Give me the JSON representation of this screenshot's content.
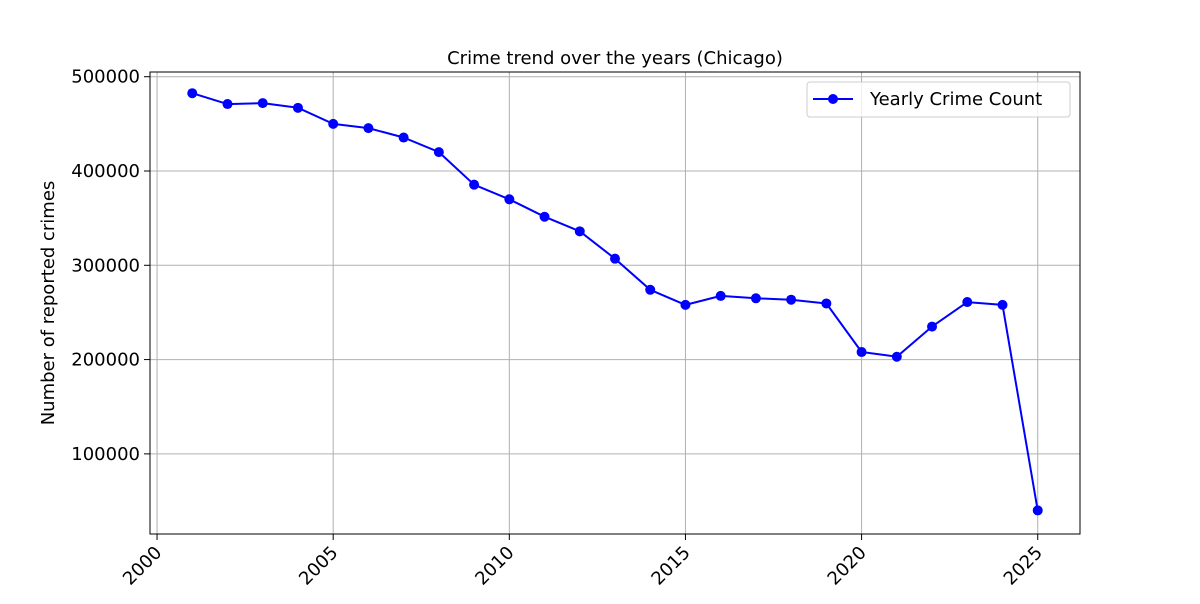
{
  "chart_data": {
    "type": "line",
    "title": "Crime trend over the years (Chicago)",
    "xlabel": "",
    "ylabel": "Number of reported crimes",
    "xlim": [
      1999.8,
      2026.2
    ],
    "ylim": [
      15000,
      505000
    ],
    "x_ticks": [
      2000,
      2005,
      2010,
      2015,
      2020,
      2025
    ],
    "y_ticks": [
      100000,
      200000,
      300000,
      400000,
      500000
    ],
    "grid": true,
    "legend_position": "top-right",
    "series": [
      {
        "name": "Yearly Crime Count",
        "color": "#0000ff",
        "marker": "circle",
        "x": [
          2001,
          2002,
          2003,
          2004,
          2005,
          2006,
          2007,
          2008,
          2009,
          2010,
          2011,
          2012,
          2013,
          2014,
          2015,
          2016,
          2017,
          2018,
          2019,
          2020,
          2021,
          2022,
          2023,
          2024,
          2025
        ],
        "y": [
          482500,
          471000,
          472000,
          467000,
          450000,
          445500,
          435500,
          420000,
          385500,
          370000,
          351500,
          336000,
          307000,
          274000,
          258000,
          267500,
          265000,
          263500,
          259500,
          208000,
          203000,
          235000,
          261000,
          258000,
          40000
        ]
      }
    ]
  }
}
